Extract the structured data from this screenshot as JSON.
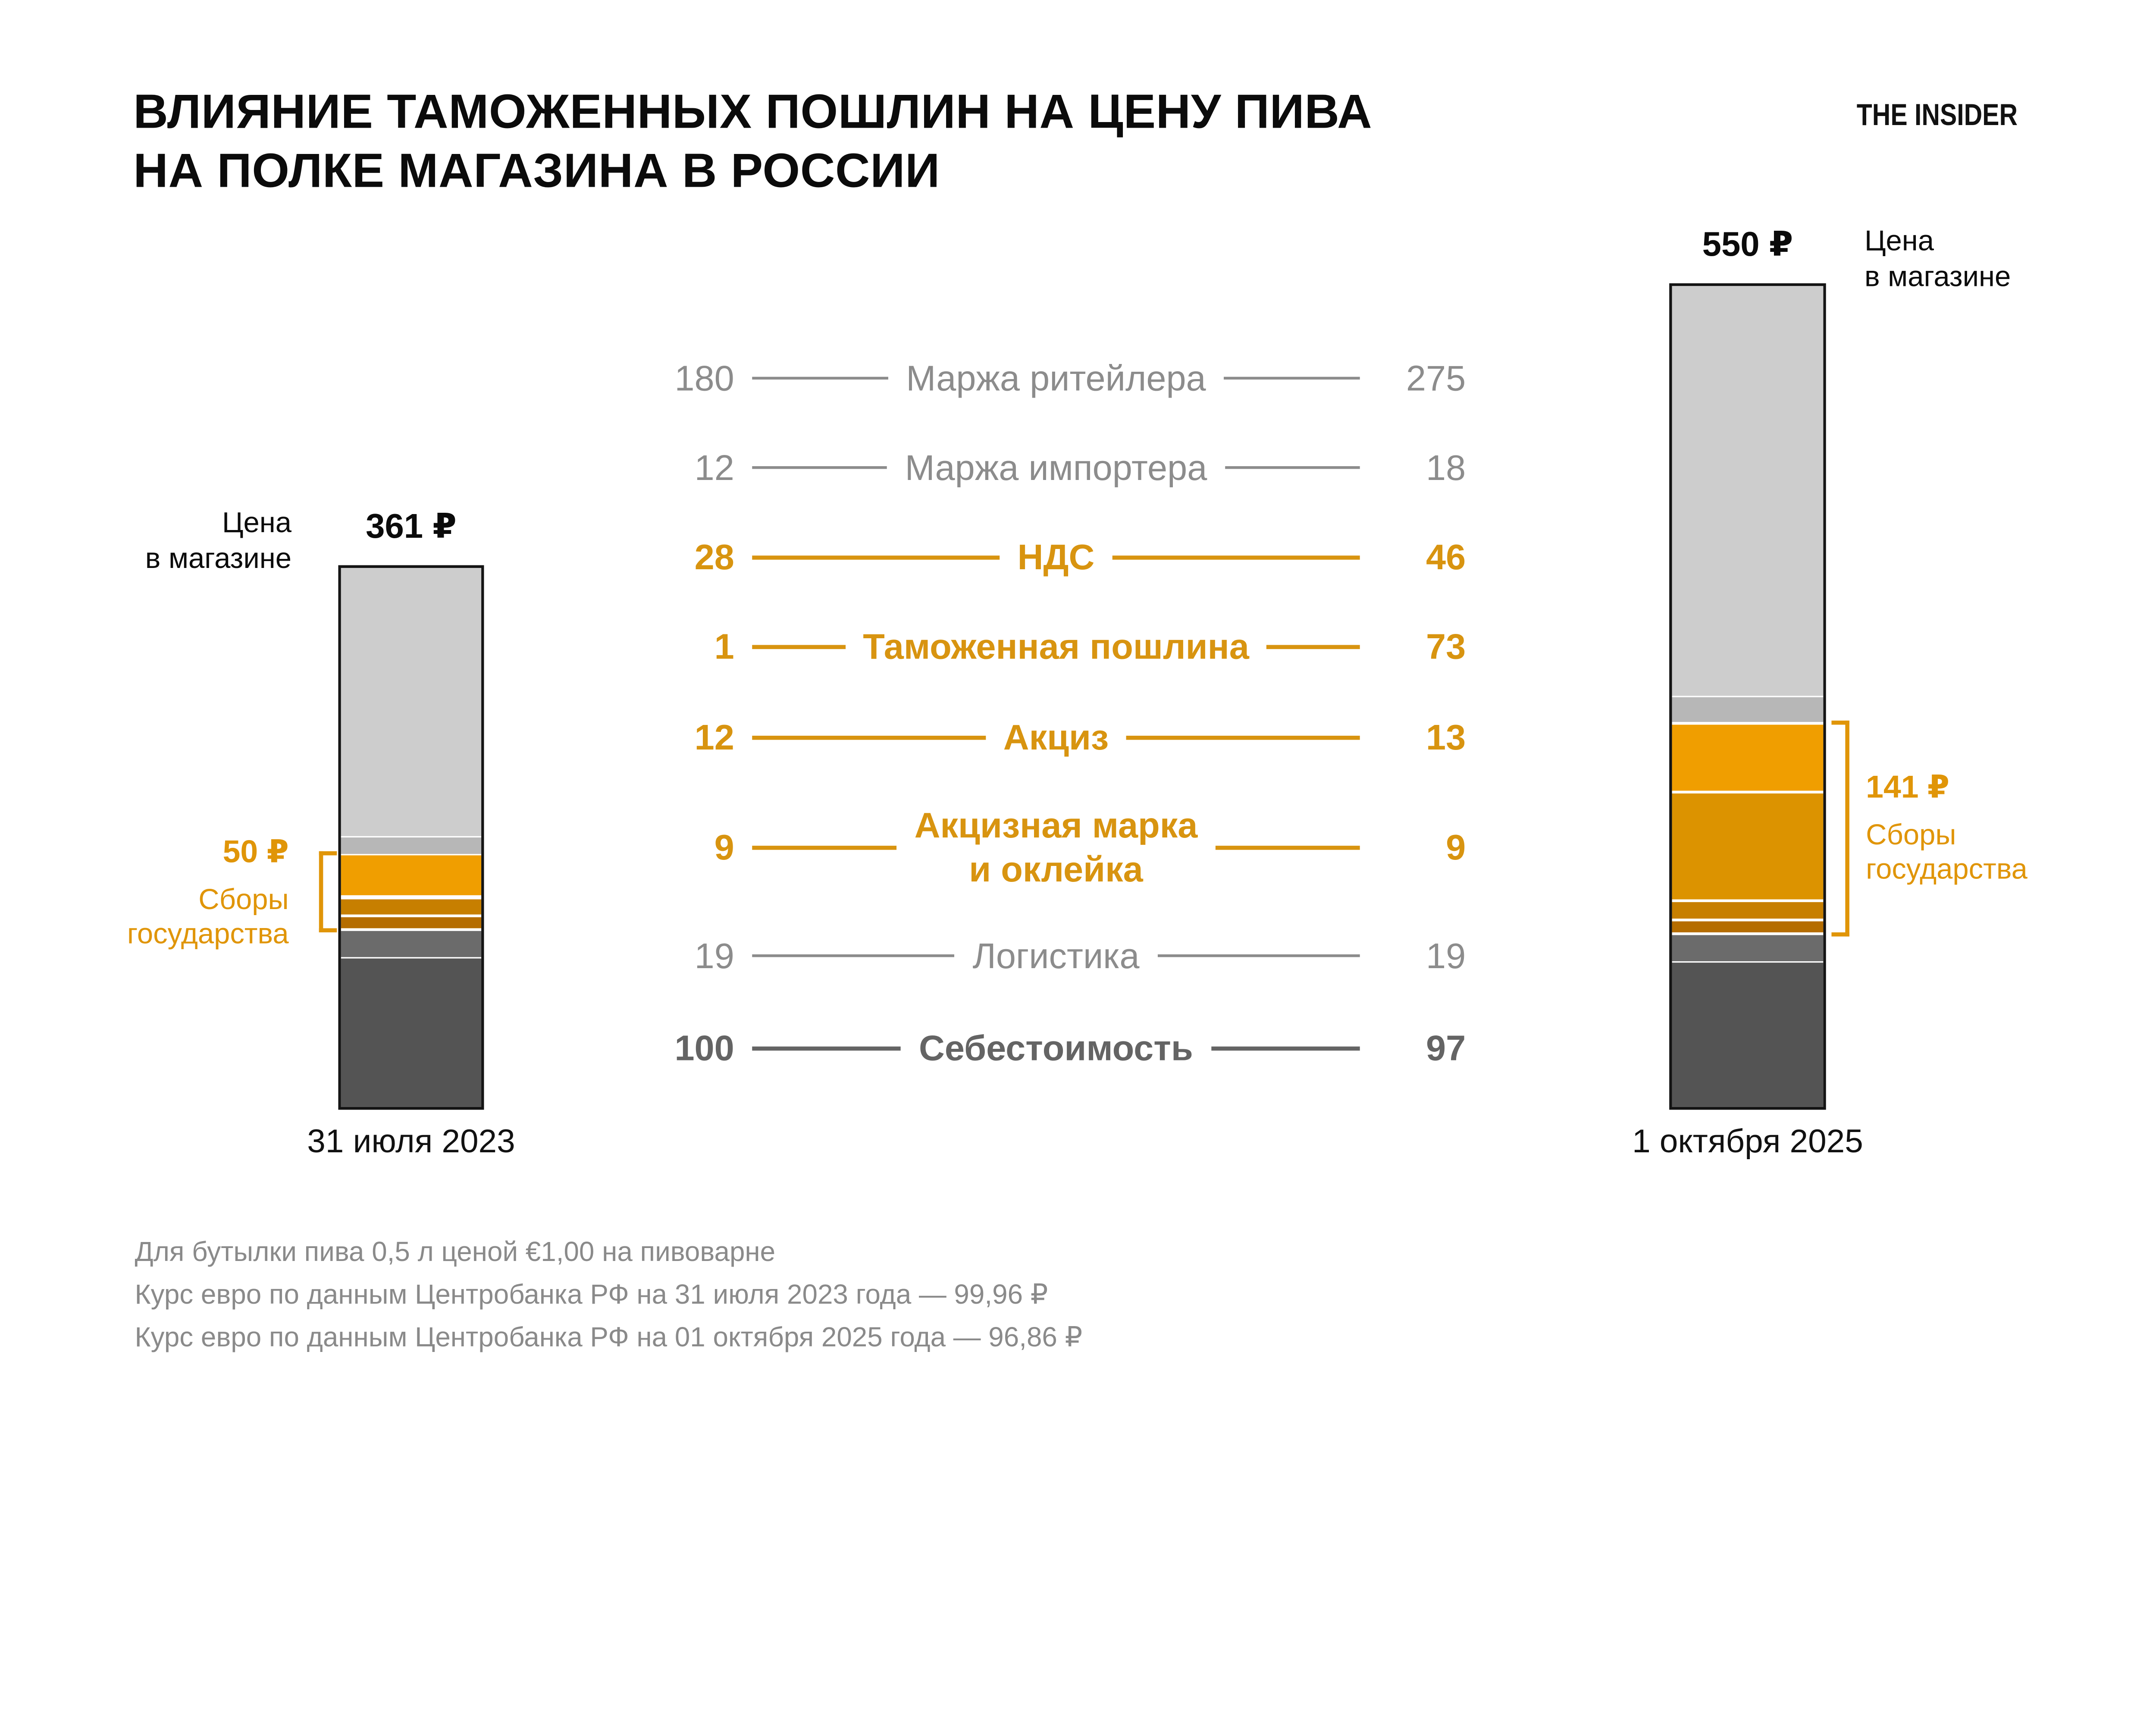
{
  "header": {
    "title_lines": [
      "ВЛИЯНИЕ ТАМОЖЕННЫХ ПОШЛИН НА ЦЕНУ ПИВА",
      "НА ПОЛКЕ МАГАЗИНА В РОССИИ"
    ],
    "logo": "THE INSIDER"
  },
  "chart_data": {
    "type": "bar",
    "subtype": "stacked-comparison",
    "unit": "₽",
    "categories": [
      {
        "label": "Маржа ритейлера",
        "values": [
          180,
          275
        ],
        "bar_color": "#cdcdcd",
        "text_color": "#8c8c8c",
        "bold": false
      },
      {
        "label": "Маржа импортера",
        "values": [
          12,
          18
        ],
        "bar_color": "#b7b7b7",
        "text_color": "#8c8c8c",
        "bold": false
      },
      {
        "label": "НДС",
        "values": [
          28,
          46
        ],
        "bar_color": "#f09e00",
        "text_color": "#d89410",
        "bold": true
      },
      {
        "label": "Таможенная пошлина",
        "values": [
          1,
          73
        ],
        "bar_color": "#dc9300",
        "text_color": "#d89410",
        "bold": true
      },
      {
        "label": "Акциз",
        "values": [
          12,
          13
        ],
        "bar_color": "#c77f00",
        "text_color": "#d89410",
        "bold": true
      },
      {
        "label": "Акцизная марка и оклейка",
        "label_lines": [
          "Акцизная марка",
          "и оклейка"
        ],
        "values": [
          9,
          9
        ],
        "bar_color": "#b56d00",
        "text_color": "#d89410",
        "bold": true
      },
      {
        "label": "Логистика",
        "values": [
          19,
          19
        ],
        "bar_color": "#6b6b6b",
        "text_color": "#8c8c8c",
        "bold": false
      },
      {
        "label": "Себестоимость",
        "values": [
          100,
          97
        ],
        "bar_color": "#545454",
        "text_color": "#646464",
        "bold": true
      }
    ],
    "bars": [
      {
        "date": "31 июля 2023",
        "total": 361,
        "total_label": "361 ₽",
        "price_note_lines": [
          "Цена",
          "в магазине"
        ],
        "state_fees_total_label": "50 ₽",
        "state_fees_caption_lines": [
          "Сборы",
          "государства"
        ]
      },
      {
        "date": "1 октября 2025",
        "total": 550,
        "total_label": "550 ₽",
        "price_note_lines": [
          "Цена",
          "в магазине"
        ],
        "state_fees_total_label": "141 ₽",
        "state_fees_caption_lines": [
          "Сборы",
          "государства"
        ]
      }
    ],
    "state_fees_span": {
      "from_category": 2,
      "to_category": 5
    },
    "accent_color": "#e09508",
    "legend_position": "center",
    "grid": false
  },
  "footnotes": [
    "Для бутылки пива 0,5 л ценой €1,00 на пивоварне",
    "Курс евро по данным Центробанка РФ на 31 июля 2023 года — 99,96 ₽",
    "Курс евро по данным Центробанка РФ на 01 октября 2025 года — 96,86 ₽"
  ]
}
